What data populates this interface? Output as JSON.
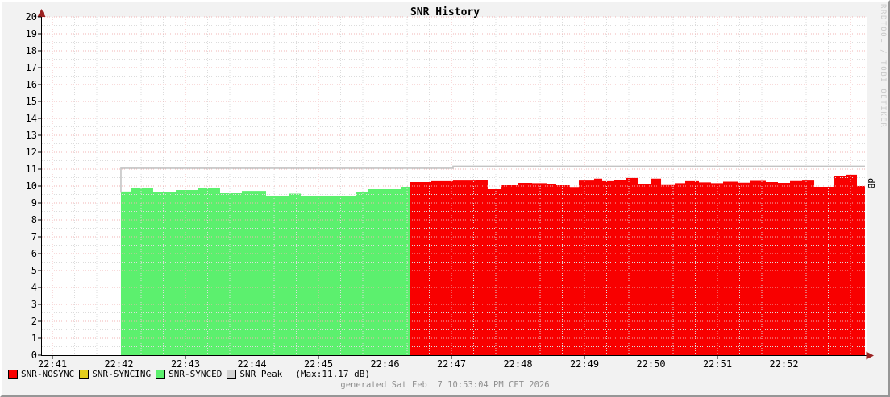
{
  "title": "SNR History",
  "right_axis_label": "dB",
  "watermark": "RRDTOOL / TOBI OETIKER",
  "footer_text": "generated Sat Feb  7 10:53:04 PM CET 2026",
  "legend": {
    "items": [
      {
        "label": "SNR-NOSYNC",
        "color": "#f80000"
      },
      {
        "label": "SNR-SYNCING",
        "color": "#e3cf1d"
      },
      {
        "label": "SNR-SYNCED",
        "color": "#5cf06e"
      },
      {
        "label": "SNR Peak",
        "color": "#d2d2d2"
      }
    ],
    "max_note": "(Max:11.17 dB)"
  },
  "chart_data": {
    "type": "area",
    "title": "SNR History",
    "ylabel": "dB",
    "ylim": [
      0,
      20
    ],
    "y_tick_step": 1,
    "y_minor_step": 0.5,
    "y_ticks": [
      0,
      1,
      2,
      3,
      4,
      5,
      6,
      7,
      8,
      9,
      10,
      11,
      12,
      13,
      14,
      15,
      16,
      17,
      18,
      19,
      20
    ],
    "x_ticks": [
      "22:41",
      "22:42",
      "22:43",
      "22:44",
      "22:45",
      "22:46",
      "22:47",
      "22:48",
      "22:49",
      "22:50",
      "22:51",
      "22:52"
    ],
    "x_minor_per_major": 3,
    "grid": true,
    "legend_position": "bottom",
    "peak_max_label": "(Max:11.17 dB)",
    "series": [
      {
        "name": "SNR-SYNCED",
        "style": "area",
        "color": "#5cf06e",
        "t_unit": "minutes after 22:41",
        "t_end": 5.37,
        "steps": [
          [
            1.03,
            9.67
          ],
          [
            1.188,
            9.86
          ],
          [
            1.515,
            9.62
          ],
          [
            1.855,
            9.76
          ],
          [
            2.182,
            9.9
          ],
          [
            2.521,
            9.57
          ],
          [
            2.848,
            9.71
          ],
          [
            3.212,
            9.43
          ],
          [
            3.552,
            9.55
          ],
          [
            3.733,
            9.43
          ],
          [
            4.57,
            9.63
          ],
          [
            4.739,
            9.81
          ],
          [
            5.248,
            9.95
          ]
        ]
      },
      {
        "name": "SNR-NOSYNC",
        "style": "area",
        "color": "#f80000",
        "t_unit": "minutes after 22:41",
        "t_end": 12.218,
        "steps": [
          [
            5.37,
            10.24
          ],
          [
            5.697,
            10.29
          ],
          [
            6.024,
            10.33
          ],
          [
            6.364,
            10.38
          ],
          [
            6.545,
            9.81
          ],
          [
            6.752,
            10.05
          ],
          [
            7.006,
            10.19
          ],
          [
            7.212,
            10.17
          ],
          [
            7.43,
            10.1
          ],
          [
            7.576,
            10.05
          ],
          [
            7.782,
            9.94
          ],
          [
            7.915,
            10.33
          ],
          [
            8.145,
            10.44
          ],
          [
            8.267,
            10.29
          ],
          [
            8.448,
            10.38
          ],
          [
            8.63,
            10.48
          ],
          [
            8.812,
            10.1
          ],
          [
            8.994,
            10.44
          ],
          [
            9.152,
            10.06
          ],
          [
            9.358,
            10.17
          ],
          [
            9.515,
            10.29
          ],
          [
            9.721,
            10.22
          ],
          [
            9.903,
            10.17
          ],
          [
            10.085,
            10.26
          ],
          [
            10.303,
            10.2
          ],
          [
            10.485,
            10.31
          ],
          [
            10.727,
            10.24
          ],
          [
            10.909,
            10.19
          ],
          [
            11.091,
            10.3
          ],
          [
            11.273,
            10.33
          ],
          [
            11.455,
            9.95
          ],
          [
            11.758,
            10.57
          ],
          [
            11.939,
            10.67
          ],
          [
            12.097,
            10.0
          ]
        ]
      },
      {
        "name": "SNR-SYNCING",
        "style": "area",
        "color": "#e3cf1d",
        "t_unit": "minutes after 22:41",
        "steps": []
      },
      {
        "name": "SNR Peak",
        "style": "line",
        "color": "#c4c4c4",
        "t_unit": "minutes after 22:41",
        "t_end": 12.218,
        "start_value": 9.6,
        "steps": [
          [
            1.03,
            11.05
          ],
          [
            6.024,
            11.17
          ]
        ]
      }
    ]
  },
  "colors": {
    "background": "#f2f2f2",
    "plot_background": "#ffffff",
    "grid_major": "#f2b4b4",
    "grid_minor": "#dcdcdc",
    "axis": "#000000",
    "arrow": "#9b2222",
    "peak_line": "#c4c4c4",
    "footer_text": "#8f8f8f",
    "watermark": "#c9c9c9"
  }
}
